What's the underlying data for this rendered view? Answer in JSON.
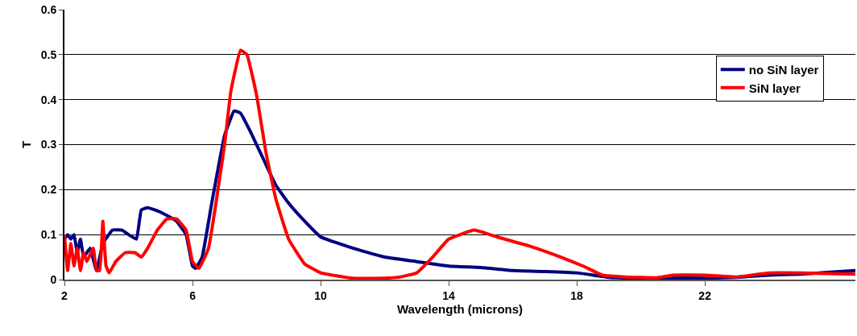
{
  "chart_data": {
    "type": "line",
    "xlabel": "Wavelength (microns)",
    "ylabel": "T",
    "xlim": [
      2,
      26.7
    ],
    "xticks": [
      2,
      6,
      10,
      14,
      18,
      22
    ],
    "ylim": [
      0,
      0.6
    ],
    "yticks": [
      0,
      0.1,
      0.2,
      0.3,
      0.4,
      0.5,
      0.6
    ],
    "grid": "y",
    "legend": "top right",
    "marker": "none",
    "line_style": "solid",
    "series": [
      {
        "name": "no SiN layer",
        "color": "#000080",
        "x": [
          2.0,
          2.1,
          2.2,
          2.3,
          2.4,
          2.5,
          2.6,
          2.8,
          3.0,
          3.2,
          3.5,
          3.8,
          4.0,
          4.25,
          4.4,
          4.6,
          5.0,
          5.5,
          5.8,
          6.0,
          6.1,
          6.3,
          6.6,
          7.0,
          7.3,
          7.5,
          7.8,
          8.2,
          8.6,
          9.0,
          9.5,
          10,
          11,
          12,
          13,
          14,
          15,
          16,
          17,
          18,
          19,
          20,
          21,
          22,
          23,
          24,
          25,
          26.7
        ],
        "values": [
          0.09,
          0.1,
          0.09,
          0.1,
          0.06,
          0.09,
          0.05,
          0.07,
          0.02,
          0.08,
          0.11,
          0.11,
          0.1,
          0.09,
          0.155,
          0.16,
          0.15,
          0.13,
          0.1,
          0.03,
          0.025,
          0.05,
          0.17,
          0.32,
          0.375,
          0.37,
          0.33,
          0.27,
          0.21,
          0.17,
          0.13,
          0.095,
          0.07,
          0.05,
          0.04,
          0.03,
          0.027,
          0.02,
          0.018,
          0.015,
          0.005,
          0.003,
          0.004,
          0.003,
          0.005,
          0.01,
          0.012,
          0.02
        ]
      },
      {
        "name": "SiN layer",
        "color": "#ff0000",
        "x": [
          2.0,
          2.1,
          2.2,
          2.3,
          2.4,
          2.5,
          2.6,
          2.7,
          2.9,
          3.0,
          3.1,
          3.2,
          3.3,
          3.4,
          3.6,
          3.9,
          4.2,
          4.4,
          4.6,
          4.9,
          5.2,
          5.5,
          5.8,
          6.0,
          6.2,
          6.5,
          7.0,
          7.2,
          7.5,
          7.7,
          8.0,
          8.3,
          8.6,
          9.0,
          9.5,
          10,
          11,
          12,
          12.5,
          13,
          13.5,
          14,
          14.8,
          15.5,
          16.5,
          17.5,
          18.2,
          18.8,
          19.5,
          20.5,
          21,
          22,
          23,
          24,
          25,
          26.7
        ],
        "values": [
          0.1,
          0.02,
          0.08,
          0.03,
          0.07,
          0.02,
          0.06,
          0.04,
          0.07,
          0.02,
          0.02,
          0.13,
          0.03,
          0.015,
          0.04,
          0.06,
          0.06,
          0.05,
          0.07,
          0.11,
          0.135,
          0.135,
          0.11,
          0.04,
          0.025,
          0.07,
          0.3,
          0.42,
          0.51,
          0.5,
          0.41,
          0.28,
          0.18,
          0.09,
          0.035,
          0.015,
          0.003,
          0.003,
          0.006,
          0.015,
          0.05,
          0.09,
          0.11,
          0.095,
          0.075,
          0.05,
          0.03,
          0.01,
          0.006,
          0.004,
          0.01,
          0.01,
          0.006,
          0.015,
          0.015,
          0.012
        ]
      }
    ]
  }
}
